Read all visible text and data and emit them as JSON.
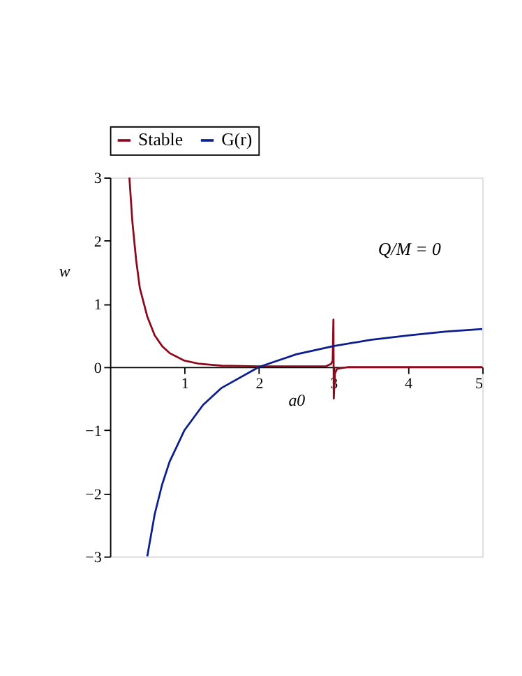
{
  "chart_data": {
    "type": "line",
    "xlabel": "a0",
    "ylabel": "w",
    "annotations": [
      "Q/M = 0"
    ],
    "xlim": [
      0,
      5
    ],
    "ylim": [
      -3,
      3
    ],
    "xticks": [
      1,
      2,
      3,
      4,
      5
    ],
    "yticks": [
      {
        "value": -3,
        "label": "−3"
      },
      {
        "value": -2,
        "label": "−2"
      },
      {
        "value": -1,
        "label": "−1"
      },
      0,
      1,
      2,
      3
    ],
    "legend": "top",
    "grid": false,
    "marker": "none",
    "line_style": "solid",
    "series": [
      {
        "name": "Stable",
        "color": "#8b0a1e",
        "x": [
          0.26,
          0.3,
          0.35,
          0.4,
          0.5,
          0.6,
          0.7,
          0.8,
          1.0,
          1.2,
          1.5,
          2.0,
          2.5,
          2.9,
          2.97,
          2.99,
          3.0,
          3.005,
          3.02,
          3.05,
          3.2,
          4.0,
          5.0
        ],
        "values": [
          3,
          2.3,
          1.7,
          1.25,
          0.8,
          0.5,
          0.33,
          0.22,
          0.1,
          0.05,
          0.02,
          0.01,
          0.01,
          0.01,
          0.05,
          0.1,
          0.75,
          -0.5,
          -0.1,
          -0.03,
          0,
          0,
          0
        ]
      },
      {
        "name": "G(r)",
        "color": "#0c1e8c",
        "x": [
          0.5,
          0.6,
          0.7,
          0.8,
          1.0,
          1.25,
          1.5,
          2.0,
          2.5,
          3.0,
          3.5,
          4.0,
          4.5,
          5.0
        ],
        "values": [
          -3,
          -2.33,
          -1.86,
          -1.5,
          -1,
          -0.6,
          -0.33,
          0,
          0.2,
          0.33,
          0.43,
          0.5,
          0.56,
          0.6
        ]
      }
    ]
  }
}
